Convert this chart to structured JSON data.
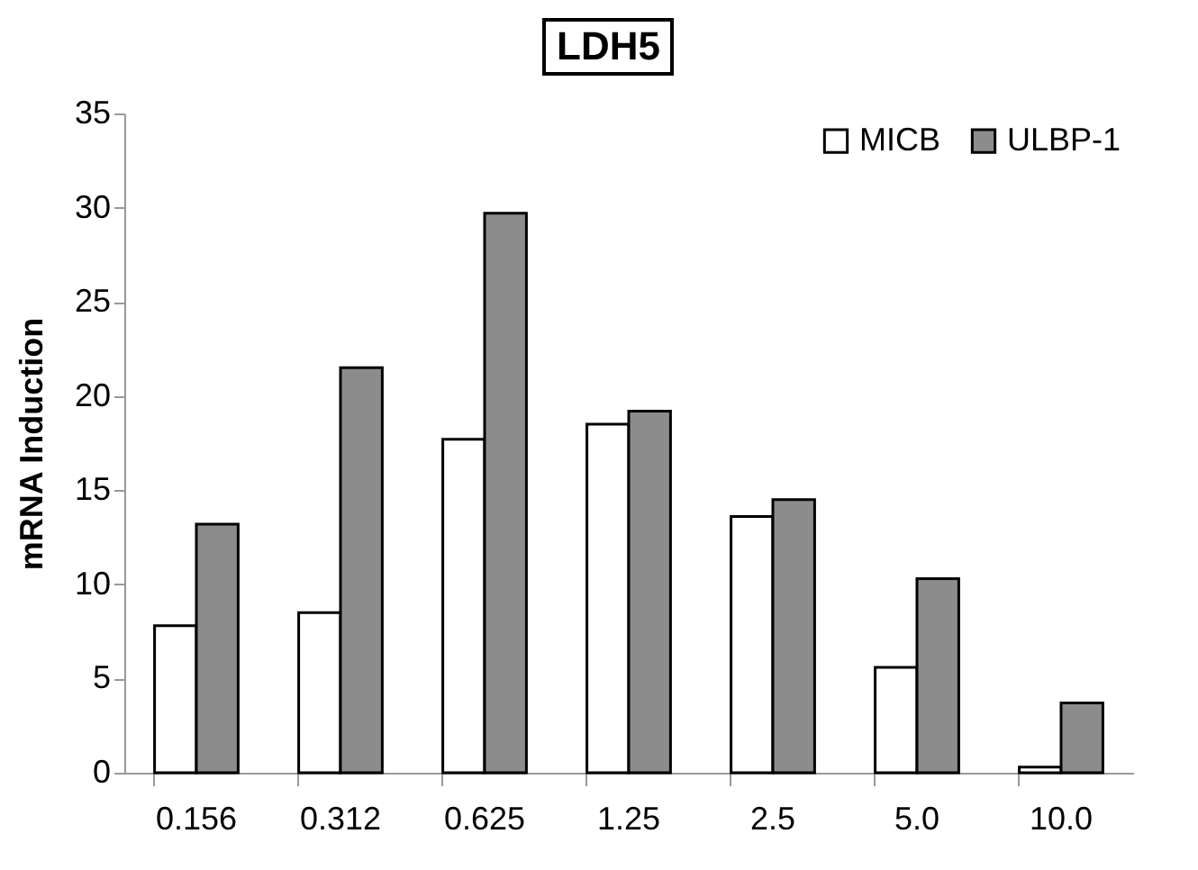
{
  "chart_data": {
    "type": "bar",
    "title": "LDH5",
    "ylabel": "mRNA Induction",
    "categories": [
      "0.156",
      "0.312",
      "0.625",
      "1.25",
      "2.5",
      "5.0",
      "10.0"
    ],
    "series": [
      {
        "name": "MICB",
        "color": "#ffffff",
        "values": [
          7.8,
          8.5,
          17.7,
          18.5,
          13.6,
          5.6,
          0.3
        ]
      },
      {
        "name": "ULBP-1",
        "color": "#8c8c8c",
        "values": [
          13.2,
          21.5,
          29.7,
          19.2,
          14.5,
          10.3,
          3.7
        ]
      }
    ],
    "ylim": [
      0,
      35
    ],
    "yticks": [
      0,
      5,
      10,
      15,
      20,
      25,
      30,
      35
    ],
    "grid": false,
    "legend": "top right"
  }
}
